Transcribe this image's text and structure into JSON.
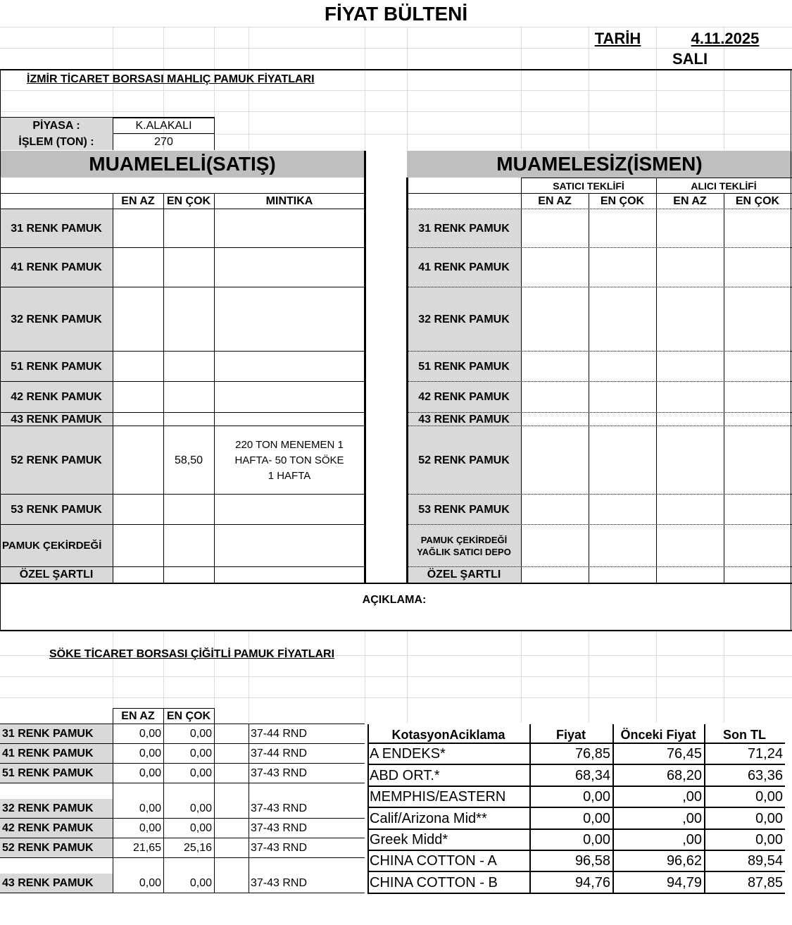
{
  "header": {
    "title": "FİYAT BÜLTENİ",
    "date_label": "TARİH",
    "date": "4.11.2025",
    "day": "SALI"
  },
  "izmir": {
    "title": "İZMİR  TİCARET BORSASI   MAHLIÇ  PAMUK FİYATLARI",
    "piyasa_label": "PİYASA :",
    "piyasa": "K.ALAKALI",
    "islem_label": "İŞLEM (TON) :",
    "islem": "270",
    "muameleli_title": "MUAMELELİ(SATIŞ)",
    "muamelesiz_title": "MUAMELESİZ(İSMEN)",
    "satici_label": "SATICI TEKLİFİ",
    "alici_label": "ALICI TEKLİFİ",
    "col_en_az": "EN AZ",
    "col_en_cok": "EN ÇOK",
    "col_mintika": "MINTIKA",
    "rows": [
      {
        "label": "31 RENK PAMUK",
        "right_label": "31 RENK PAMUK",
        "en_az": "",
        "en_cok": "",
        "mintika": ""
      },
      {
        "label": "41 RENK PAMUK",
        "right_label": "41 RENK PAMUK",
        "en_az": "",
        "en_cok": "",
        "mintika": ""
      },
      {
        "label": "32 RENK PAMUK",
        "right_label": "32 RENK PAMUK",
        "en_az": "",
        "en_cok": "",
        "mintika": ""
      },
      {
        "label": "51 RENK PAMUK",
        "right_label": "51 RENK PAMUK",
        "en_az": "",
        "en_cok": "",
        "mintika": ""
      },
      {
        "label": "42 RENK PAMUK",
        "right_label": "42 RENK PAMUK",
        "en_az": "",
        "en_cok": "",
        "mintika": ""
      },
      {
        "label": "43 RENK PAMUK",
        "right_label": "43 RENK PAMUK",
        "en_az": "",
        "en_cok": "",
        "mintika": ""
      },
      {
        "label": "52 RENK PAMUK",
        "right_label": "52 RENK PAMUK",
        "en_az": "",
        "en_cok": "58,50",
        "mintika": "220 TON MENEMEN 1\nHAFTA- 50 TON SÖKE\n1 HAFTA"
      },
      {
        "label": "53 RENK PAMUK",
        "right_label": "53 RENK PAMUK",
        "en_az": "",
        "en_cok": "",
        "mintika": ""
      },
      {
        "label": "PAMUK ÇEKİRDEĞİ",
        "right_label": "PAMUK ÇEKİRDEĞİ\nYAĞLIK SATICI DEPO",
        "en_az": "",
        "en_cok": "",
        "mintika": ""
      },
      {
        "label": "ÖZEL ŞARTLI",
        "right_label": "ÖZEL ŞARTLI",
        "en_az": "",
        "en_cok": "",
        "mintika": ""
      }
    ],
    "aciklama_label": "AÇIKLAMA:"
  },
  "soke": {
    "title": "SÖKE  TİCARET BORSASI ÇİĞİTLİ PAMUK FİYATLARI",
    "col_en_az": "EN AZ",
    "col_en_cok": "EN ÇOK",
    "rows": [
      {
        "label": "31 RENK PAMUK",
        "en_az": "0,00",
        "en_cok": "0,00",
        "rnd": "37-44 RND"
      },
      {
        "label": "41 RENK PAMUK",
        "en_az": "0,00",
        "en_cok": "0,00",
        "rnd": "37-44 RND"
      },
      {
        "label": "51 RENK PAMUK",
        "en_az": "0,00",
        "en_cok": "0,00",
        "rnd": "37-43 RND"
      },
      {
        "label": "32 RENK PAMUK",
        "en_az": "0,00",
        "en_cok": "0,00",
        "rnd": "37-43 RND"
      },
      {
        "label": "42 RENK PAMUK",
        "en_az": "0,00",
        "en_cok": "0,00",
        "rnd": "37-43 RND"
      },
      {
        "label": "52 RENK PAMUK",
        "en_az": "21,65",
        "en_cok": "25,16",
        "rnd": "37-43 RND"
      },
      {
        "label": "43 RENK PAMUK",
        "en_az": "0,00",
        "en_cok": "0,00",
        "rnd": "37-43 RND"
      }
    ]
  },
  "kotasyon": {
    "headers": [
      "KotasyonAciklama",
      "Fiyat",
      "Önceki Fiyat",
      "Son TL"
    ],
    "rows": [
      [
        "A ENDEKS*",
        "76,85",
        "76,45",
        "71,24"
      ],
      [
        "ABD ORT.*",
        "68,34",
        "68,20",
        "63,36"
      ],
      [
        "MEMPHIS/EASTERN",
        "0,00",
        ",00",
        "0,00"
      ],
      [
        "Calif/Arizona Mid**",
        "0,00",
        ",00",
        "0,00"
      ],
      [
        "Greek Midd*",
        "0,00",
        ",00",
        "0,00"
      ],
      [
        "CHINA COTTON - A",
        "96,58",
        "96,62",
        "89,54"
      ],
      [
        "CHINA COTTON - B",
        "94,76",
        "94,79",
        "87,85"
      ]
    ]
  },
  "colors": {
    "label_fill": "#d9d9d9",
    "title_fill": "#bfbfbf"
  }
}
